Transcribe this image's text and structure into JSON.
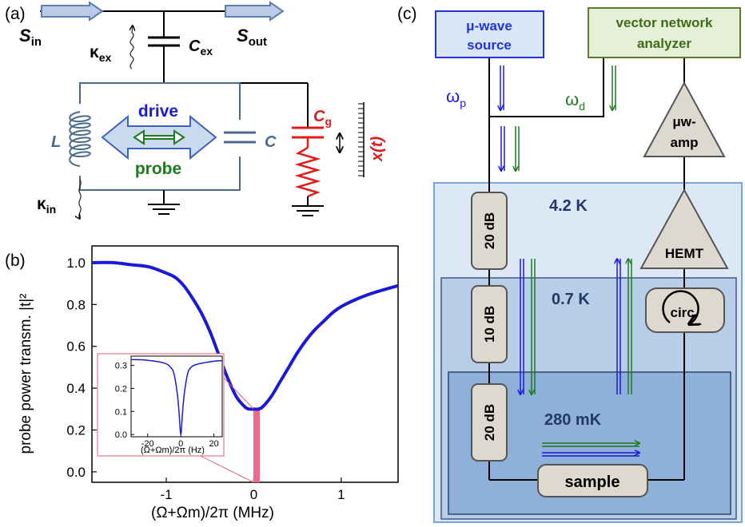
{
  "colors": {
    "blue": "#1a1ad6",
    "green": "#1e7a1e",
    "red": "#e01b1b",
    "circuit_gray": "#4a6a8c",
    "source_fill": "#d8e6f6",
    "source_border": "#2233dd",
    "vna_fill": "#e6f0d6",
    "vna_border": "#5b7a2e",
    "component_fill": "#ddd9cf",
    "stage_42k": "#dce8f5",
    "stage_07k": "#b7cde8",
    "stage_280mk": "#8fb0d9",
    "inset_red": "#e06070",
    "pink_band": "#ee6a8a"
  },
  "panel_a": {
    "label": "(a)",
    "s_in": "S",
    "s_in_sub": "in",
    "s_out": "S",
    "s_out_sub": "out",
    "kappa_ex": "κ",
    "kappa_ex_sub": "ex",
    "c_ex": "C",
    "c_ex_sub": "ex",
    "l_label": "L",
    "drive": "drive",
    "probe": "probe",
    "c_label": "C",
    "c_g": "C",
    "c_g_sub": "g",
    "x_t": "x(t)",
    "kappa_in": "κ",
    "kappa_in_sub": "in"
  },
  "panel_b": {
    "label": "(b)",
    "inset_x_tick_labels": [
      "-20",
      "0",
      "20"
    ],
    "inset_y_tick_labels": [
      "0.3",
      "0.2",
      "0.1",
      "0.0"
    ],
    "inset_xlabel": "(Ω+Ωm)/2π (Hz)"
  },
  "panel_c": {
    "label": "(c)",
    "source_line1": "μ-wave",
    "source_line2": "source",
    "vna_line1": "vector network",
    "vna_line2": "analyzer",
    "omega_p": "ω",
    "omega_p_sub": "p",
    "omega_d": "ω",
    "omega_d_sub": "d",
    "amp_line1": "μw-",
    "amp_line2": "amp",
    "temp_42k": "4.2 K",
    "temp_07k": "0.7 K",
    "temp_280mk": "280 mK",
    "att1": "20 dB",
    "att2": "10 dB",
    "att3": "20 dB",
    "hemt": "HEMT",
    "circ": "circ.",
    "sample": "sample"
  },
  "chart_data": {
    "type": "line",
    "title": "",
    "xlabel": "(Ω+Ωm)/2π (MHz)",
    "ylabel": "probe power transm. |t|²",
    "xlim": [
      -1.85,
      1.65
    ],
    "ylim": [
      -0.05,
      1.08
    ],
    "x_ticks": [
      -1,
      0,
      1
    ],
    "y_ticks": [
      0.0,
      0.2,
      0.4,
      0.6,
      0.8,
      1.0
    ],
    "x_tick_labels": [
      "-1",
      "0",
      "1"
    ],
    "y_tick_labels": [
      "0.0",
      "0.2",
      "0.4",
      "0.6",
      "0.8",
      "1.0"
    ],
    "grid": false,
    "series": [
      {
        "color": "#1a1ad6",
        "x": [
          -1.85,
          -1.6,
          -1.4,
          -1.2,
          -1.0,
          -0.9,
          -0.8,
          -0.7,
          -0.6,
          -0.5,
          -0.4,
          -0.3,
          -0.2,
          -0.1,
          -0.05,
          0.0,
          0.05,
          0.1,
          0.2,
          0.3,
          0.4,
          0.5,
          0.6,
          0.7,
          0.8,
          0.9,
          1.0,
          1.2,
          1.4,
          1.65
        ],
        "y": [
          1.0,
          1.0,
          0.99,
          0.98,
          0.95,
          0.93,
          0.89,
          0.83,
          0.76,
          0.67,
          0.56,
          0.45,
          0.36,
          0.31,
          0.3,
          0.3,
          0.3,
          0.31,
          0.36,
          0.43,
          0.5,
          0.57,
          0.63,
          0.68,
          0.72,
          0.76,
          0.79,
          0.83,
          0.86,
          0.89
        ]
      }
    ],
    "inset": {
      "type": "line",
      "xlabel": "(Ω+Ωm)/2π (Hz)",
      "xlim": [
        -30,
        25
      ],
      "ylim": [
        -0.01,
        0.34
      ],
      "x_ticks": [
        -20,
        0,
        20
      ],
      "y_ticks": [
        0.0,
        0.1,
        0.2,
        0.3
      ],
      "series": [
        {
          "color": "#1a1ad6",
          "x": [
            -30,
            -20,
            -10,
            -6,
            -4,
            -2,
            -1,
            0,
            1,
            2,
            4,
            6,
            10,
            20,
            25
          ],
          "y": [
            0.325,
            0.322,
            0.31,
            0.29,
            0.26,
            0.17,
            0.09,
            0.0,
            0.09,
            0.17,
            0.26,
            0.29,
            0.305,
            0.318,
            0.32
          ]
        }
      ]
    }
  }
}
